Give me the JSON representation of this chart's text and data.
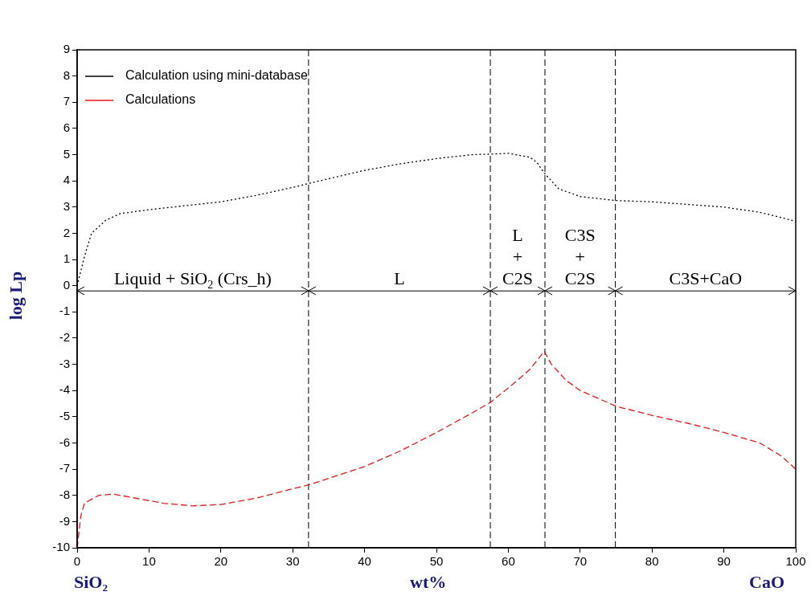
{
  "chart_data": {
    "type": "line",
    "x": [
      0,
      1,
      2,
      4,
      6,
      10,
      15,
      20,
      25,
      30,
      32.2,
      40,
      45,
      50,
      55,
      57.5,
      60,
      63,
      64,
      65,
      67,
      70,
      75,
      80,
      85,
      90,
      95,
      98,
      100
    ],
    "series": [
      {
        "name": "Calculation using mini-database",
        "color": "#000000",
        "line_style": "dotted",
        "values": [
          0,
          1.1,
          2.0,
          2.5,
          2.75,
          2.9,
          3.05,
          3.2,
          3.45,
          3.75,
          3.9,
          4.4,
          4.65,
          4.85,
          5.0,
          5.02,
          5.05,
          4.9,
          4.7,
          4.3,
          3.7,
          3.4,
          3.25,
          3.2,
          3.1,
          3.0,
          2.8,
          2.6,
          2.45
        ]
      },
      {
        "name": "Calculations",
        "color": "#e41a1c",
        "line_style": "dashed",
        "x": [
          0,
          0.5,
          1,
          3,
          5,
          8,
          12,
          16,
          20,
          25,
          30,
          32.2,
          40,
          45,
          50,
          55,
          57.5,
          60,
          63,
          65,
          66,
          68,
          70,
          75,
          80,
          85,
          90,
          95,
          98,
          100
        ],
        "values": [
          -10,
          -8.8,
          -8.3,
          -8.0,
          -7.95,
          -8.1,
          -8.3,
          -8.4,
          -8.35,
          -8.1,
          -7.75,
          -7.6,
          -6.9,
          -6.3,
          -5.6,
          -4.85,
          -4.45,
          -3.9,
          -3.2,
          -2.5,
          -3.0,
          -3.6,
          -4.0,
          -4.6,
          -4.95,
          -5.25,
          -5.6,
          -6.0,
          -6.5,
          -7.0
        ]
      }
    ],
    "xlabel": "wt%",
    "ylabel": "log Lp",
    "annotations": [
      "SiO₂",
      "CaO",
      {
        "text": "Liquid + SiO$_{2}$ (Crs_h)",
        "x": 16.1,
        "y": -0.2
      },
      {
        "text": "L",
        "x": 44.85,
        "y": -0.2
      },
      {
        "text": "L\n+\nC2S",
        "x": 61.3,
        "y": -0.2
      },
      {
        "text": "C3S\n+\nC2S",
        "x": 70,
        "y": -0.2
      },
      {
        "text": "C3S+CaO",
        "x": 87.45,
        "y": -0.2
      }
    ],
    "xlim": [
      0,
      100
    ],
    "xticks": [
      0,
      10,
      20,
      30,
      40,
      50,
      60,
      70,
      80,
      90,
      100
    ],
    "ylim": [
      -10,
      9
    ],
    "yticks": [
      -10,
      -9,
      -8,
      -7,
      -6,
      -5,
      -4,
      -3,
      -2,
      -1,
      0,
      1,
      2,
      3,
      4,
      5,
      6,
      7,
      8,
      9
    ],
    "ref_lines": [
      {
        "axis": "x",
        "value": 32.2,
        "color": "#000000",
        "line_style": "dashed"
      },
      {
        "axis": "x",
        "value": 57.5,
        "color": "#000000",
        "line_style": "dashed"
      },
      {
        "axis": "x",
        "value": 65.1,
        "color": "#000000",
        "line_style": "dashed"
      },
      {
        "axis": "x",
        "value": 74.9,
        "color": "#000000",
        "line_style": "dashed"
      },
      {
        "axis": "y",
        "value": -0.2,
        "color": "#000000",
        "line_style": "solid"
      }
    ],
    "grid": false,
    "legend": "top left"
  }
}
